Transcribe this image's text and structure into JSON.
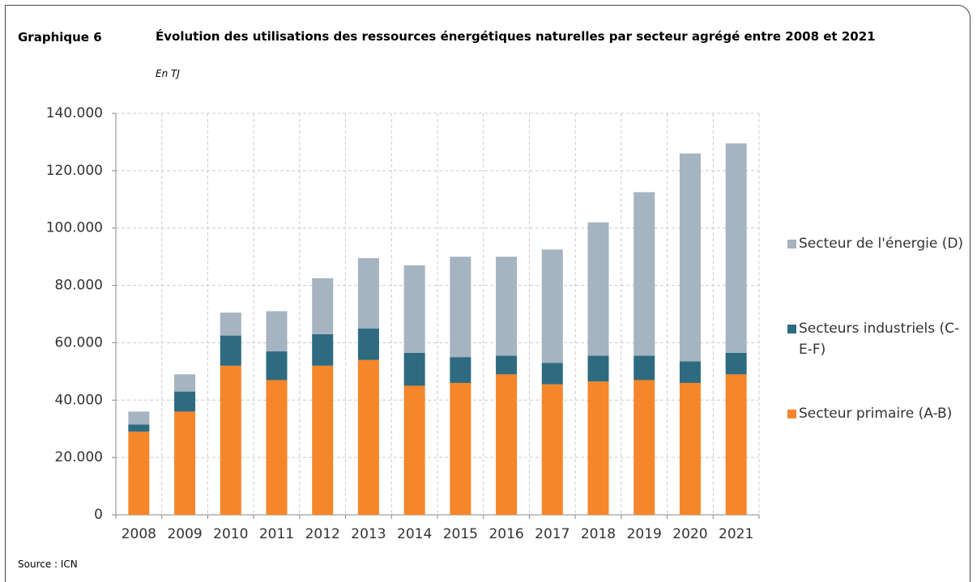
{
  "header": {
    "label": "Graphique 6",
    "title": "Évolution des utilisations des ressources énergétiques naturelles par secteur agrégé entre 2008 et 2021",
    "subtitle": "En TJ"
  },
  "chart_data": {
    "type": "stacked_bar",
    "categories": [
      "2008",
      "2009",
      "2010",
      "2011",
      "2012",
      "2013",
      "2014",
      "2015",
      "2016",
      "2017",
      "2018",
      "2019",
      "2020",
      "2021"
    ],
    "series": [
      {
        "name": "Secteur primaire (A-B)",
        "color": "#f5862a",
        "values": [
          29000,
          36000,
          52000,
          47000,
          52000,
          54000,
          45000,
          46000,
          49000,
          45500,
          46500,
          47000,
          46000,
          49000
        ]
      },
      {
        "name": "Secteurs industriels (C-E-F)",
        "color": "#2e6b80",
        "values": [
          2500,
          7000,
          10500,
          10000,
          11000,
          11000,
          11500,
          9000,
          6500,
          7500,
          9000,
          8500,
          7500,
          7500
        ]
      },
      {
        "name": "Secteur de l'énergie (D)",
        "color": "#a6b3c0",
        "values": [
          4500,
          6000,
          8000,
          14000,
          19500,
          24500,
          30500,
          35000,
          34500,
          39500,
          46500,
          57000,
          72500,
          73000
        ]
      }
    ],
    "ylim": [
      0,
      140000
    ],
    "yticks": [
      0,
      {
        "value": 20000,
        "label": "20.000"
      },
      {
        "value": 40000,
        "label": "40.000"
      },
      {
        "value": 60000,
        "label": "60.000"
      },
      {
        "value": 80000,
        "label": "80.000"
      },
      {
        "value": 100000,
        "label": "100.000"
      },
      {
        "value": 120000,
        "label": "120.000"
      },
      {
        "value": 140000,
        "label": "140.000"
      }
    ],
    "grid": true,
    "legend": "right"
  },
  "footer": {
    "source": "Source : ICN"
  }
}
